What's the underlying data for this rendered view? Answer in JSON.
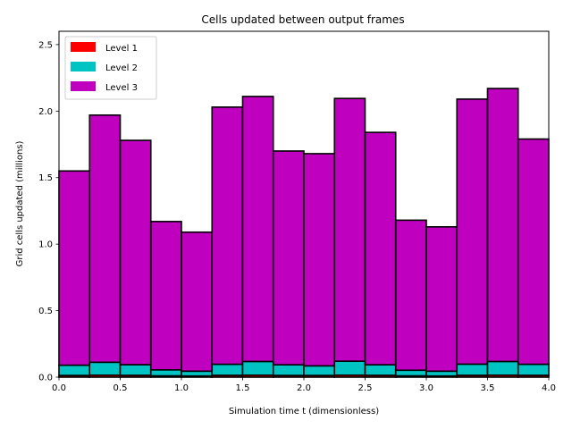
{
  "chart_data": {
    "type": "bar",
    "stacked": true,
    "title": "Cells updated between output frames",
    "xlabel": "Simulation time t (dimensionless)",
    "ylabel": "Grid cells updated (millions)",
    "xlim": [
      0.0,
      4.0
    ],
    "ylim": [
      0.0,
      2.6
    ],
    "bin_edges": [
      0.0,
      0.25,
      0.5,
      0.75,
      1.0,
      1.25,
      1.5,
      1.75,
      2.0,
      2.25,
      2.5,
      2.75,
      3.0,
      3.25,
      3.5,
      3.75,
      4.0
    ],
    "xticks": [
      "0.0",
      "0.5",
      "1.0",
      "1.5",
      "2.0",
      "2.5",
      "3.0",
      "3.5",
      "4.0"
    ],
    "xtick_values": [
      0.0,
      0.5,
      1.0,
      1.5,
      2.0,
      2.5,
      3.0,
      3.5,
      4.0
    ],
    "yticks": [
      "0.0",
      "0.5",
      "1.0",
      "1.5",
      "2.0",
      "2.5"
    ],
    "ytick_values": [
      0.0,
      0.5,
      1.0,
      1.5,
      2.0,
      2.5
    ],
    "grid": false,
    "legend_position": "top-left",
    "series": [
      {
        "name": "Level 1",
        "color": "#ff0000",
        "values": [
          0.013,
          0.015,
          0.014,
          0.01,
          0.009,
          0.014,
          0.015,
          0.013,
          0.013,
          0.015,
          0.014,
          0.01,
          0.009,
          0.014,
          0.015,
          0.014
        ]
      },
      {
        "name": "Level 2",
        "color": "#00c4c4",
        "values": [
          0.077,
          0.097,
          0.08,
          0.045,
          0.036,
          0.083,
          0.103,
          0.08,
          0.072,
          0.105,
          0.079,
          0.042,
          0.036,
          0.084,
          0.103,
          0.083
        ]
      },
      {
        "name": "Level 3",
        "color": "#bf00bf",
        "values": [
          1.46,
          1.858,
          1.686,
          1.115,
          1.045,
          1.933,
          1.992,
          1.607,
          1.595,
          1.975,
          1.747,
          1.128,
          1.085,
          1.992,
          2.052,
          1.693
        ]
      }
    ]
  }
}
